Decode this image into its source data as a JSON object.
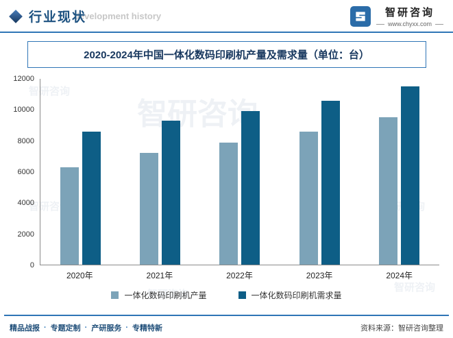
{
  "header": {
    "title": "行业现状",
    "logo": {
      "name": "智研咨询",
      "url": "www.chyxx.com"
    }
  },
  "watermarks": {
    "header_text": "development history",
    "logo_text": "智研咨询"
  },
  "chart_data": {
    "type": "bar",
    "title": "2020-2024年中国一体化数码印刷机产量及需求量（单位：台）",
    "categories": [
      "2020年",
      "2021年",
      "2022年",
      "2023年",
      "2024年"
    ],
    "series": [
      {
        "name": "一体化数码印刷机产量",
        "color": "#7CA3B8",
        "values": [
          6300,
          7200,
          7900,
          8600,
          9500
        ]
      },
      {
        "name": "一体化数码印刷机需求量",
        "color": "#0E5E86",
        "values": [
          8600,
          9300,
          9900,
          10600,
          11500
        ]
      }
    ],
    "xlabel": "",
    "ylabel": "",
    "ylim": [
      0,
      12000
    ],
    "yticks": [
      0,
      2000,
      4000,
      6000,
      8000,
      10000,
      12000
    ],
    "grid": false,
    "legend_position": "bottom"
  },
  "footer": {
    "left_items": [
      "精品战报",
      "专题定制",
      "产研服务",
      "专精特新"
    ],
    "separator": "·",
    "source": "资料来源：智研咨询整理"
  }
}
